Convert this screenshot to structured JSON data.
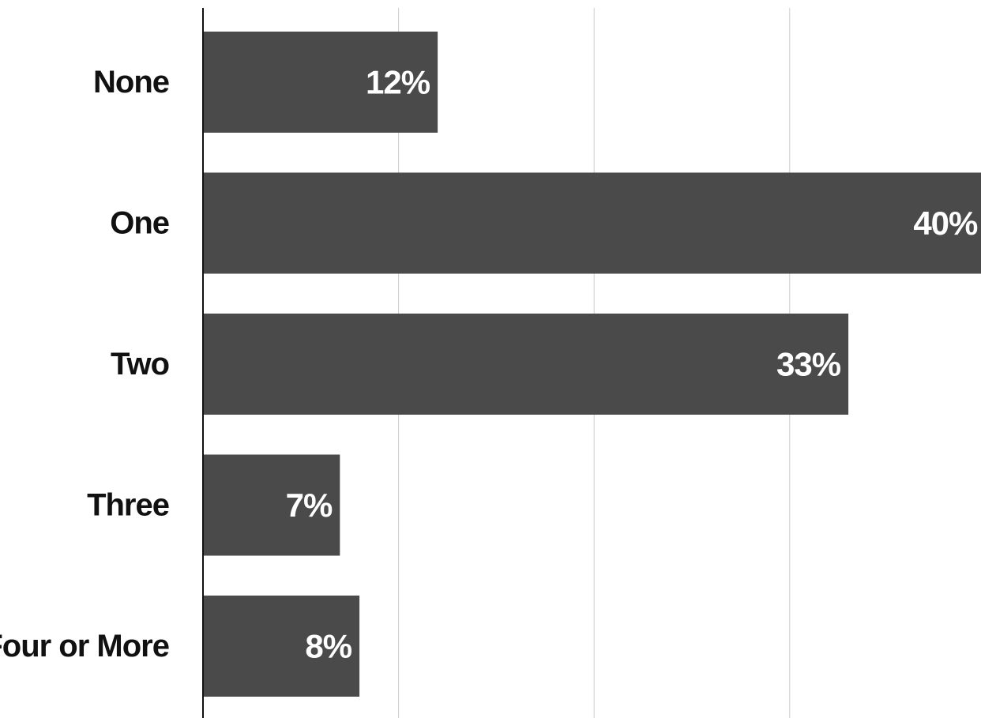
{
  "chart_data": {
    "type": "bar",
    "orientation": "horizontal",
    "categories": [
      "None",
      "One",
      "Two",
      "Three",
      "Four or More"
    ],
    "values": [
      12,
      40,
      33,
      7,
      8
    ],
    "value_labels": [
      "12%",
      "40%",
      "33%",
      "7%",
      "8%"
    ],
    "xlim": [
      0,
      50
    ],
    "grid": true,
    "title": "",
    "xlabel": "",
    "ylabel": "",
    "bar_color": "#4a4a4a",
    "label_color": "#ffffff",
    "grid_color": "#cccccc",
    "axis_color": "#111111"
  }
}
